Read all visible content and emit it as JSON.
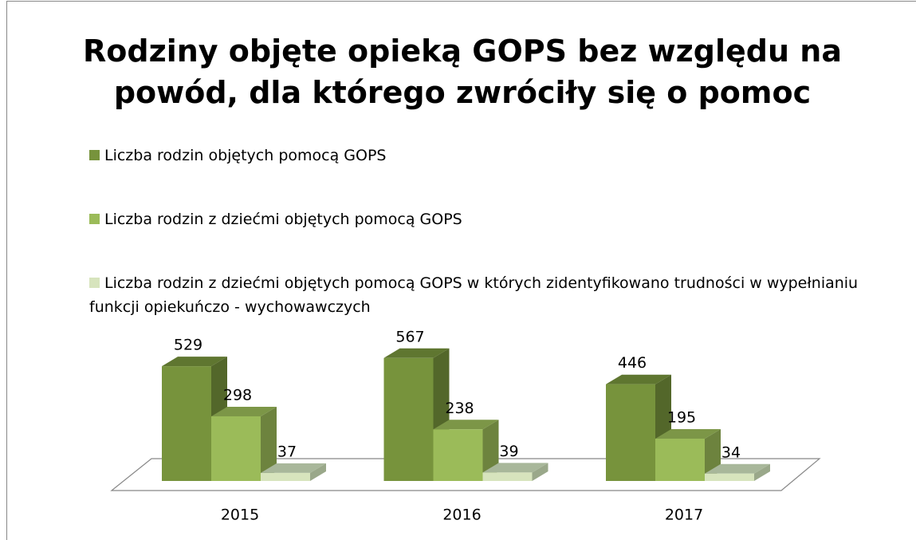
{
  "chart_data": {
    "type": "bar3d",
    "title": "Rodziny objęte opieką GOPS bez względu na powód, dla którego zwróciły się o pomoc",
    "categories": [
      "2015",
      "2016",
      "2017"
    ],
    "series": [
      {
        "name": "Liczba rodzin objętych pomocą GOPS",
        "color": "#77933c",
        "values": [
          529,
          567,
          446
        ]
      },
      {
        "name": "Liczba rodzin z dziećmi objętych pomocą GOPS",
        "color": "#9bbb59",
        "values": [
          298,
          238,
          195
        ]
      },
      {
        "name": "Liczba rodzin z dziećmi objętych pomocą GOPS w których zidentyfikowano trudności w wypełnianiu funkcji opiekuńczo - wychowawczych",
        "color": "#d7e4bd",
        "values": [
          37,
          39,
          34
        ]
      }
    ],
    "legend": "top"
  }
}
